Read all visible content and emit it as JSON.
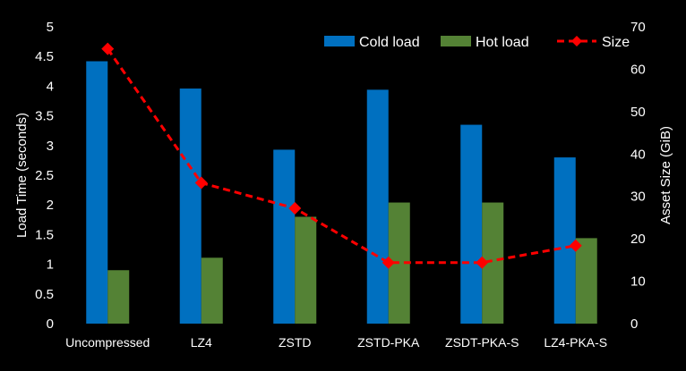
{
  "chart_data": {
    "type": "bar",
    "title": "",
    "categories": [
      "Uncompressed",
      "LZ4",
      "ZSTD",
      "ZSTD-PKA",
      "ZSDT-PKA-S",
      "LZ4-PKA-S"
    ],
    "series": [
      {
        "name": "Cold load",
        "type": "bar",
        "axis": "left",
        "color": "#0070C0",
        "values": [
          4.42,
          3.96,
          2.93,
          3.94,
          3.35,
          2.8
        ]
      },
      {
        "name": "Hot load",
        "type": "bar",
        "axis": "left",
        "color": "#548235",
        "values": [
          0.9,
          1.11,
          1.8,
          2.04,
          2.04,
          1.44
        ]
      },
      {
        "name": "Size",
        "type": "line",
        "axis": "right",
        "color": "#FF0000",
        "line_style": "dashed",
        "marker": "diamond",
        "values": [
          64.8,
          33.2,
          27.2,
          14.4,
          14.4,
          18.4
        ]
      }
    ],
    "ylabel": "Load Time (seconds)",
    "y2label": "Asset Size (GiB)",
    "ylim": [
      0,
      5
    ],
    "y2lim": [
      0,
      70
    ],
    "yticks": [
      "0",
      "0.5",
      "1",
      "1.5",
      "2",
      "2.5",
      "3",
      "3.5",
      "4",
      "4.5",
      "5"
    ],
    "y2ticks": [
      "0",
      "10",
      "20",
      "30",
      "40",
      "50",
      "60",
      "70"
    ],
    "grid": false,
    "legend_position": "top-right",
    "background": "#000000",
    "text_color": "#FFFFFF"
  }
}
